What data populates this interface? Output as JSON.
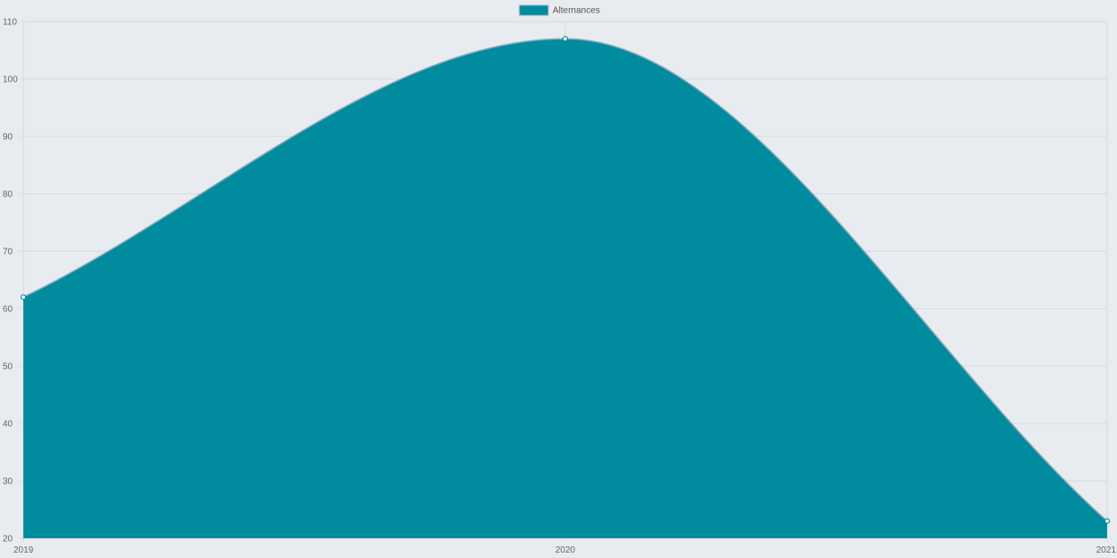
{
  "chart_data": {
    "type": "area",
    "categories": [
      "2019",
      "2020",
      "2021"
    ],
    "series": [
      {
        "name": "Alternances",
        "values": [
          62,
          107,
          23
        ]
      }
    ],
    "ylim": [
      20,
      110
    ],
    "yticks": [
      20,
      30,
      40,
      50,
      60,
      70,
      80,
      90,
      100,
      110
    ],
    "grid": true,
    "legend": "top-center",
    "colors": {
      "fill": "#008c9e",
      "stroke": "#8ba7b7",
      "grid": "#d6d9de",
      "background": "#e8ebf0",
      "point": "#ffffff"
    }
  }
}
